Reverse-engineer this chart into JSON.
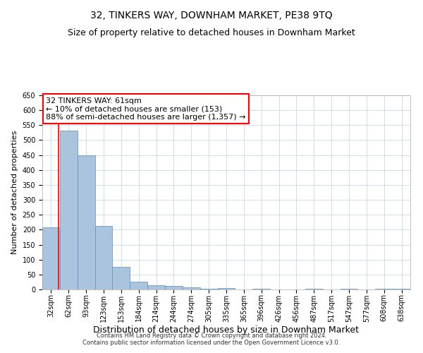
{
  "title": "32, TINKERS WAY, DOWNHAM MARKET, PE38 9TQ",
  "subtitle": "Size of property relative to detached houses in Downham Market",
  "xlabel": "Distribution of detached houses by size in Downham Market",
  "ylabel": "Number of detached properties",
  "footer_line1": "Contains HM Land Registry data © Crown copyright and database right 2024.",
  "footer_line2": "Contains public sector information licensed under the Open Government Licence v3.0.",
  "categories": [
    "32sqm",
    "62sqm",
    "93sqm",
    "123sqm",
    "153sqm",
    "184sqm",
    "214sqm",
    "244sqm",
    "274sqm",
    "305sqm",
    "335sqm",
    "365sqm",
    "396sqm",
    "426sqm",
    "456sqm",
    "487sqm",
    "517sqm",
    "547sqm",
    "577sqm",
    "608sqm",
    "638sqm"
  ],
  "values": [
    207,
    533,
    450,
    212,
    76,
    25,
    14,
    12,
    8,
    2,
    5,
    0,
    3,
    0,
    0,
    2,
    0,
    3,
    0,
    2,
    3
  ],
  "bar_color": "#aac4de",
  "bar_edge_color": "#5b8db8",
  "grid_color": "#c8d8e8",
  "annotation_line1": "32 TINKERS WAY: 61sqm",
  "annotation_line2": "← 10% of detached houses are smaller (153)",
  "annotation_line3": "88% of semi-detached houses are larger (1,357) →",
  "annotation_box_color": "white",
  "annotation_box_edge_color": "red",
  "vline_color": "red",
  "vline_x": 0.42,
  "ylim": [
    0,
    650
  ],
  "yticks": [
    0,
    50,
    100,
    150,
    200,
    250,
    300,
    350,
    400,
    450,
    500,
    550,
    600,
    650
  ],
  "bg_color": "white",
  "title_fontsize": 10,
  "subtitle_fontsize": 9,
  "xlabel_fontsize": 9,
  "ylabel_fontsize": 8,
  "tick_fontsize": 7,
  "annotation_fontsize": 8,
  "footer_fontsize": 6
}
